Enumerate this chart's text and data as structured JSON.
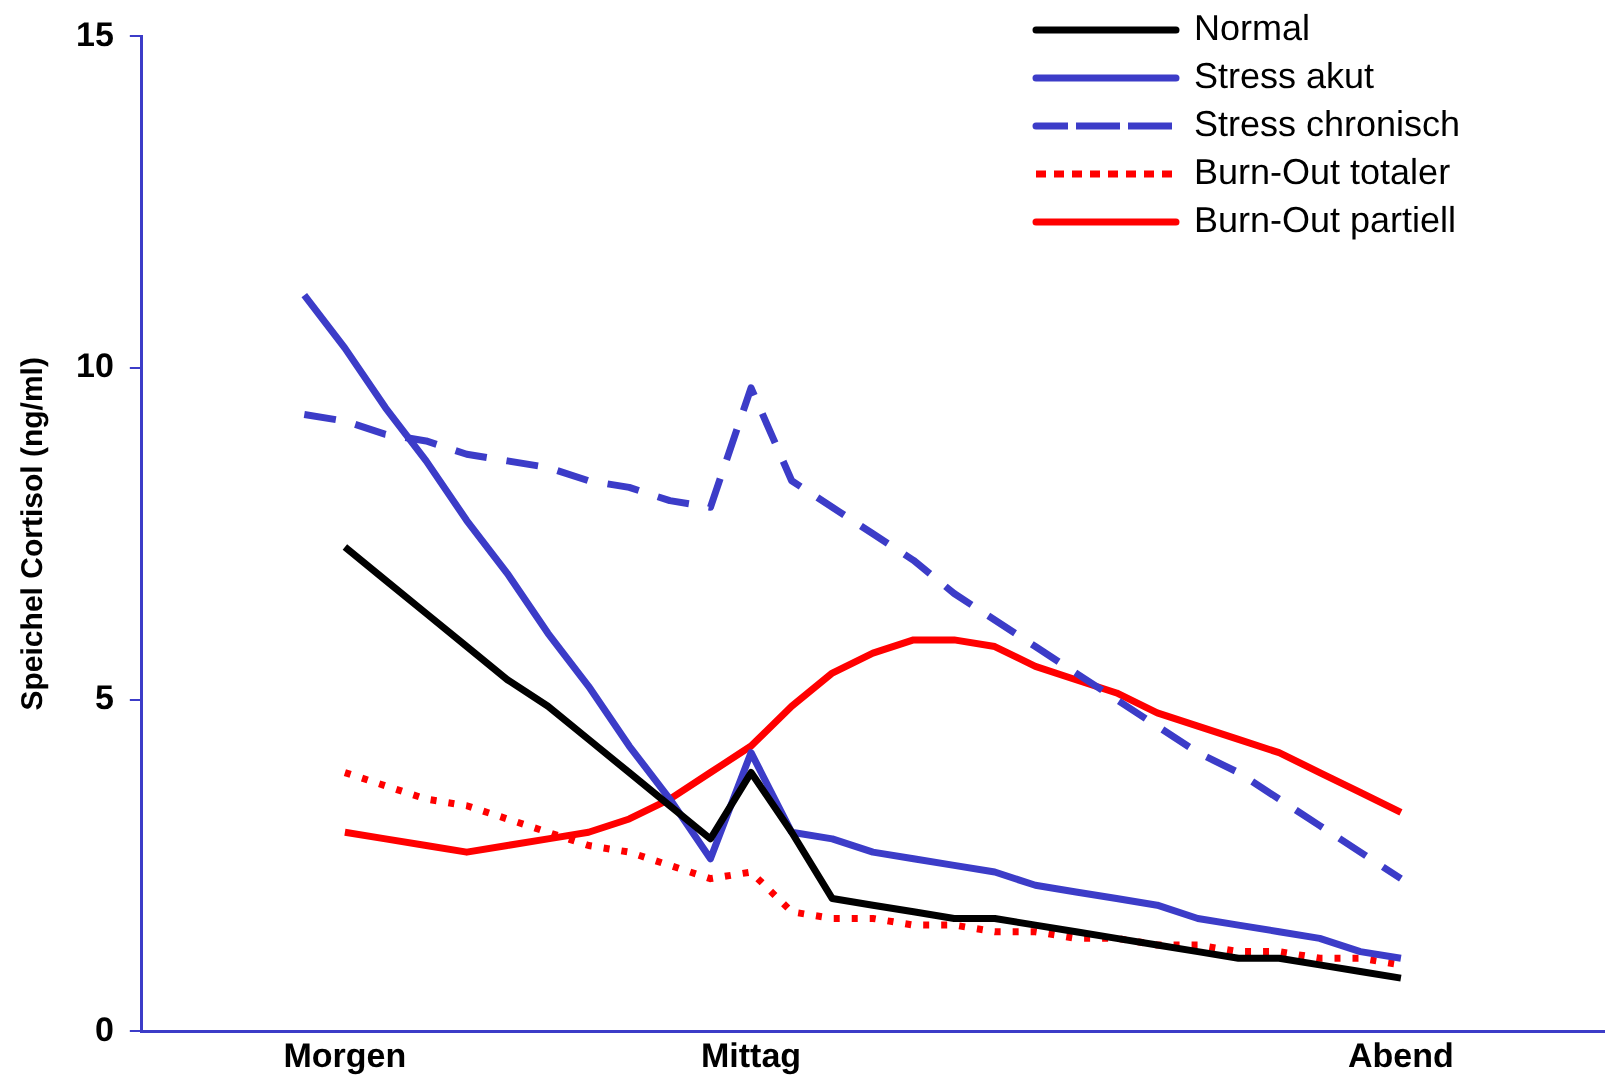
{
  "chart_data": {
    "type": "line",
    "ylabel": "Speichel Cortisol (ng/ml)",
    "categories": [
      null,
      null,
      null,
      null,
      null,
      "Morgen",
      null,
      null,
      null,
      null,
      null,
      null,
      null,
      null,
      null,
      "Mittag",
      null,
      null,
      null,
      null,
      null,
      null,
      null,
      null,
      null,
      null,
      null,
      null,
      null,
      null,
      null,
      "Abend",
      null,
      null,
      null,
      null,
      null
    ],
    "ylim": [
      0,
      15
    ],
    "yticks": [
      0,
      5,
      10,
      15
    ],
    "grid": false,
    "legend": "top right",
    "marker": "none",
    "series": [
      {
        "name": "Normal",
        "color": "#000000",
        "line_style": "solid",
        "values": [
          null,
          null,
          null,
          null,
          null,
          7.3,
          6.8,
          6.3,
          5.8,
          5.3,
          4.9,
          4.4,
          3.9,
          3.4,
          2.9,
          3.9,
          3.0,
          2.0,
          1.9,
          1.8,
          1.7,
          1.7,
          1.6,
          1.5,
          1.4,
          1.3,
          1.2,
          1.1,
          1.1,
          1.0,
          0.9,
          0.8,
          null,
          null,
          null,
          null,
          null
        ]
      },
      {
        "name": "Stress akut",
        "color": "#3c3cc8",
        "line_style": "solid",
        "values": [
          null,
          null,
          null,
          null,
          11.1,
          10.3,
          9.4,
          8.6,
          7.7,
          6.9,
          6.0,
          5.2,
          4.3,
          3.5,
          2.6,
          4.2,
          3.0,
          2.9,
          2.7,
          2.6,
          2.5,
          2.4,
          2.2,
          2.1,
          2.0,
          1.9,
          1.7,
          1.6,
          1.5,
          1.4,
          1.2,
          1.1,
          null,
          null,
          null,
          null,
          null
        ]
      },
      {
        "name": "Stress chronisch",
        "color": "#3c3cc8",
        "line_style": "dashed",
        "values": [
          null,
          null,
          null,
          null,
          9.3,
          9.2,
          9.0,
          8.9,
          8.7,
          8.6,
          8.5,
          8.3,
          8.2,
          8.0,
          7.9,
          9.7,
          8.3,
          7.9,
          7.5,
          7.1,
          6.6,
          6.2,
          5.8,
          5.4,
          5.0,
          4.6,
          4.2,
          3.9,
          3.5,
          3.1,
          2.7,
          2.3,
          null,
          null,
          null,
          null,
          null
        ]
      },
      {
        "name": "Burn-Out totaler",
        "color": "#ff0000",
        "line_style": "dotted",
        "values": [
          null,
          null,
          null,
          null,
          null,
          3.9,
          3.7,
          3.5,
          3.4,
          3.2,
          3.0,
          2.8,
          2.7,
          2.5,
          2.3,
          2.4,
          1.8,
          1.7,
          1.7,
          1.6,
          1.6,
          1.5,
          1.5,
          1.4,
          1.4,
          1.3,
          1.3,
          1.2,
          1.2,
          1.1,
          1.1,
          1.0,
          null,
          null,
          null,
          null,
          null
        ]
      },
      {
        "name": "Burn-Out partiell",
        "color": "#ff0000",
        "line_style": "solid",
        "values": [
          null,
          null,
          null,
          null,
          null,
          3.0,
          2.9,
          2.8,
          2.7,
          2.8,
          2.9,
          3.0,
          3.2,
          3.5,
          3.9,
          4.3,
          4.9,
          5.4,
          5.7,
          5.9,
          5.9,
          5.8,
          5.5,
          5.3,
          5.1,
          4.8,
          4.6,
          4.4,
          4.2,
          3.9,
          3.6,
          3.3,
          null,
          null,
          null,
          null,
          null
        ]
      }
    ]
  }
}
